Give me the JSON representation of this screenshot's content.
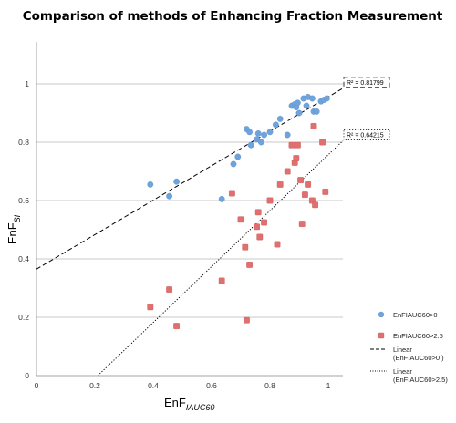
{
  "chart_data": {
    "type": "scatter",
    "title": "Comparison of methods of Enhancing Fraction Measurement",
    "xlabel": "EnF",
    "xlabel_sub": "IAUC60",
    "ylabel": "EnF",
    "ylabel_sub": "SI",
    "xlim": [
      0,
      1.05
    ],
    "ylim": [
      0,
      1.05
    ],
    "x_ticks": [
      "0",
      "0.2",
      "0.4",
      "0.6",
      "0.8",
      "1"
    ],
    "y_ticks": [
      "0",
      "0.2",
      "0.4",
      "0.6",
      "0.8",
      "1"
    ],
    "grid": "horizontal",
    "legend_position": "right",
    "series": [
      {
        "name": "EnFIAUC60>0",
        "marker": "circle",
        "color": "#6fa3dc",
        "points": [
          [
            0.39,
            0.655
          ],
          [
            0.455,
            0.615
          ],
          [
            0.48,
            0.665
          ],
          [
            0.635,
            0.605
          ],
          [
            0.675,
            0.725
          ],
          [
            0.69,
            0.75
          ],
          [
            0.72,
            0.845
          ],
          [
            0.73,
            0.835
          ],
          [
            0.735,
            0.79
          ],
          [
            0.755,
            0.81
          ],
          [
            0.76,
            0.83
          ],
          [
            0.77,
            0.8
          ],
          [
            0.78,
            0.825
          ],
          [
            0.8,
            0.835
          ],
          [
            0.82,
            0.86
          ],
          [
            0.835,
            0.88
          ],
          [
            0.86,
            0.825
          ],
          [
            0.875,
            0.925
          ],
          [
            0.885,
            0.93
          ],
          [
            0.89,
            0.92
          ],
          [
            0.895,
            0.935
          ],
          [
            0.9,
            0.9
          ],
          [
            0.915,
            0.95
          ],
          [
            0.925,
            0.925
          ],
          [
            0.93,
            0.955
          ],
          [
            0.945,
            0.95
          ],
          [
            0.95,
            0.905
          ],
          [
            0.96,
            0.905
          ],
          [
            0.975,
            0.94
          ],
          [
            0.985,
            0.945
          ],
          [
            0.995,
            0.95
          ]
        ]
      },
      {
        "name": "EnFIAUC60>2.5",
        "marker": "square",
        "color": "#e07070",
        "points": [
          [
            0.39,
            0.235
          ],
          [
            0.455,
            0.295
          ],
          [
            0.48,
            0.17
          ],
          [
            0.635,
            0.325
          ],
          [
            0.67,
            0.625
          ],
          [
            0.7,
            0.535
          ],
          [
            0.715,
            0.44
          ],
          [
            0.72,
            0.19
          ],
          [
            0.73,
            0.38
          ],
          [
            0.755,
            0.51
          ],
          [
            0.76,
            0.56
          ],
          [
            0.765,
            0.475
          ],
          [
            0.78,
            0.525
          ],
          [
            0.8,
            0.6
          ],
          [
            0.825,
            0.45
          ],
          [
            0.835,
            0.655
          ],
          [
            0.86,
            0.7
          ],
          [
            0.875,
            0.79
          ],
          [
            0.885,
            0.73
          ],
          [
            0.89,
            0.745
          ],
          [
            0.895,
            0.79
          ],
          [
            0.905,
            0.67
          ],
          [
            0.91,
            0.52
          ],
          [
            0.92,
            0.62
          ],
          [
            0.93,
            0.655
          ],
          [
            0.945,
            0.6
          ],
          [
            0.95,
            0.855
          ],
          [
            0.955,
            0.585
          ],
          [
            0.98,
            0.8
          ],
          [
            0.99,
            0.63
          ]
        ]
      }
    ],
    "trendlines": [
      {
        "name": "Linear (EnFIAUC60>0 )",
        "name_lines": [
          "Linear",
          "(EnFIAUC60>0 )"
        ],
        "style": "dashed",
        "r2_label": "R² = 0.81799",
        "from": [
          0,
          0.365
        ],
        "to": [
          1.05,
          0.985
        ]
      },
      {
        "name": "Linear (EnFIAUC60>2.5)",
        "name_lines": [
          "Linear",
          "(EnFIAUC60>2.5)"
        ],
        "style": "dotted",
        "r2_label": "R² = 0.64215",
        "from": [
          0.21,
          0
        ],
        "to": [
          1.05,
          0.805
        ]
      }
    ]
  }
}
